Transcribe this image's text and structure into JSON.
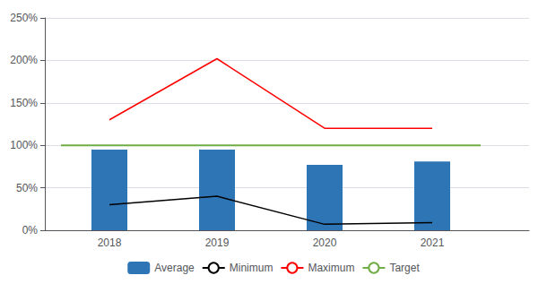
{
  "chart_data": {
    "type": "bar",
    "x": [
      2018,
      2019,
      2020,
      2021
    ],
    "series": [
      {
        "name": "Average",
        "type": "bar",
        "color": "#2E75B6",
        "values": [
          95,
          95,
          77,
          81
        ]
      },
      {
        "name": "Minimum",
        "type": "line",
        "color": "#000000",
        "values": [
          30,
          40,
          7,
          9
        ]
      },
      {
        "name": "Maximum",
        "type": "line",
        "color": "#FF0000",
        "values": [
          130,
          202,
          120,
          120
        ]
      },
      {
        "name": "Target",
        "type": "line",
        "color": "#70AD47",
        "x": [
          2017.55,
          2021.45
        ],
        "values": [
          100,
          100
        ]
      }
    ],
    "xlim": [
      2017.4,
      2021.9
    ],
    "xticks": [
      2018,
      2019,
      2020,
      2021
    ],
    "ylim": [
      0,
      250
    ],
    "yticks": [
      {
        "value": 0,
        "label": "0%"
      },
      {
        "value": 50,
        "label": "50%"
      },
      {
        "value": 100,
        "label": "100%"
      },
      {
        "value": 150,
        "label": "150%"
      },
      {
        "value": 200,
        "label": "200%"
      },
      {
        "value": 250,
        "label": "250%"
      }
    ],
    "grid": true,
    "legend": "bottom"
  }
}
